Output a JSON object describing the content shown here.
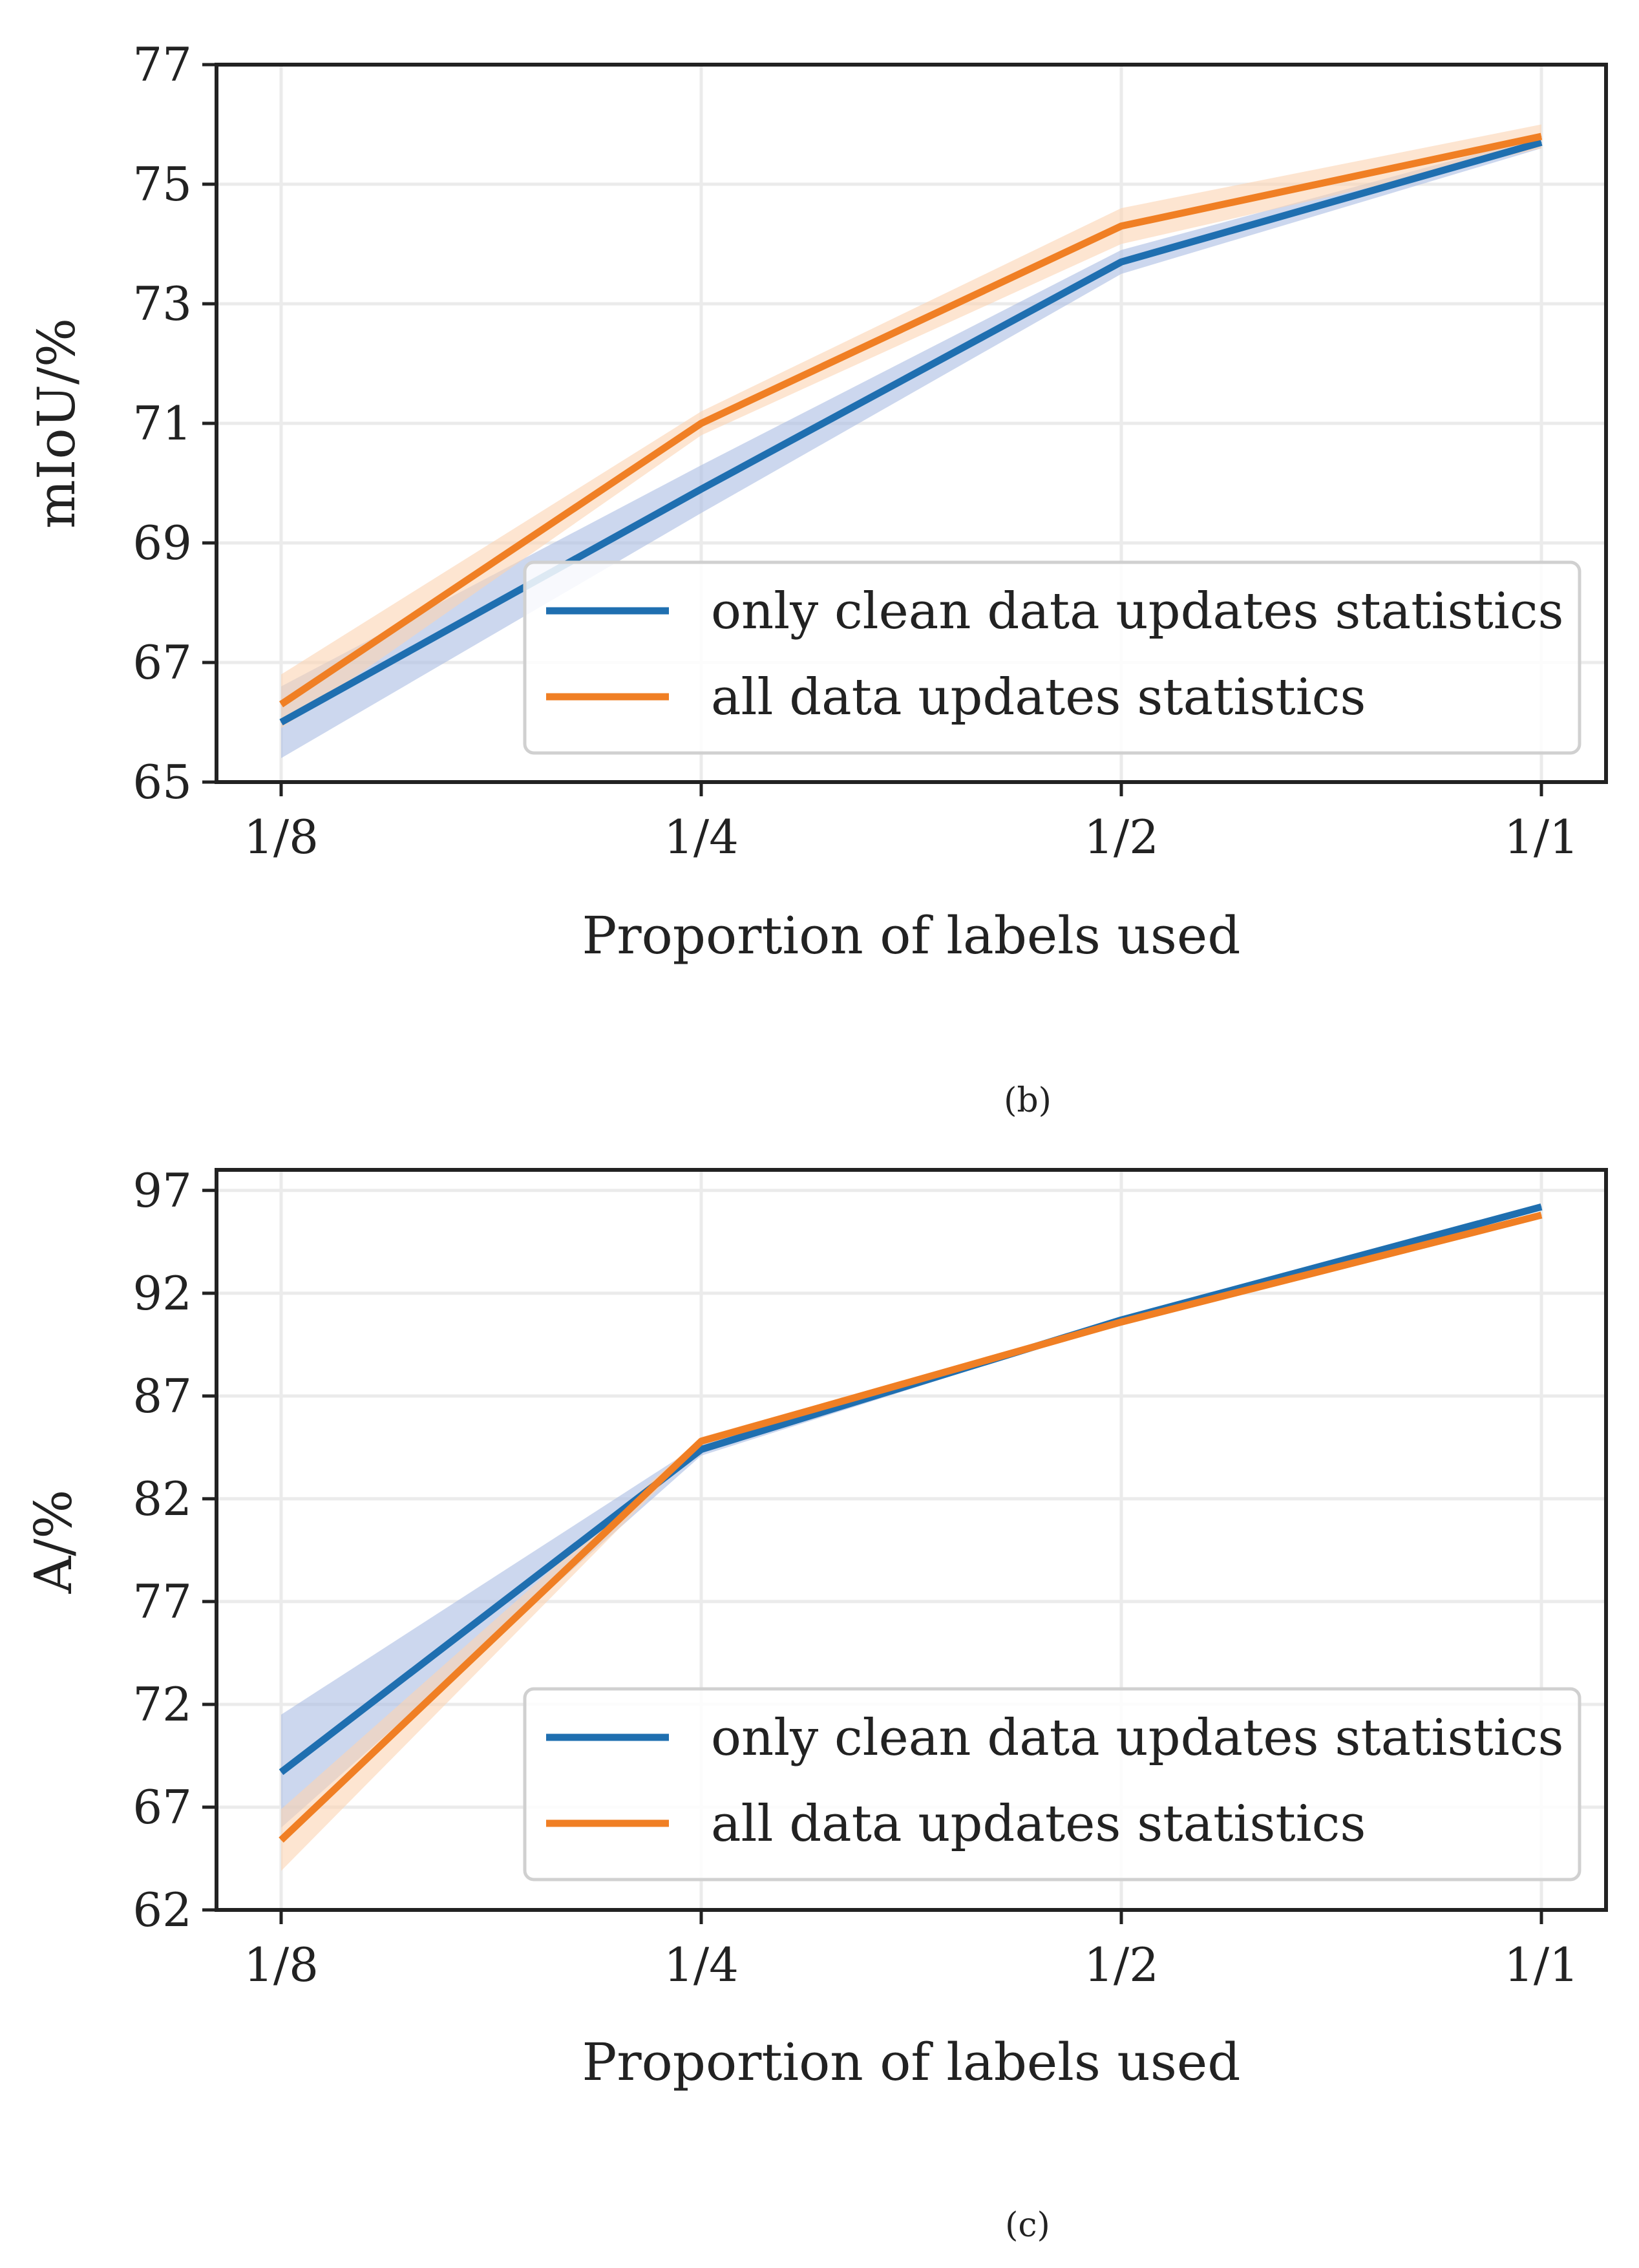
{
  "colors": {
    "blue": "#1f6fb0",
    "blue_band": "#aabde3",
    "orange": "#f07f24",
    "orange_band": "#fbd3b2",
    "axis": "#222222",
    "grid": "#ebebeb"
  },
  "chart_data": [
    {
      "type": "line",
      "caption": "(b)",
      "xlabel": "Proportion of labels used",
      "ylabel": "mIoU/%",
      "categories": [
        "1/8",
        "1/4",
        "1/2",
        "1/1"
      ],
      "ylim": [
        65,
        77
      ],
      "yticks": [
        "65",
        "67",
        "69",
        "71",
        "73",
        "75",
        "77"
      ],
      "grid": true,
      "legend_position": "lower-right",
      "series": [
        {
          "name": "only clean data updates statistics",
          "color_key": "blue",
          "values": [
            66.0,
            69.9,
            73.7,
            75.7
          ],
          "band_low": [
            65.4,
            69.5,
            73.5,
            75.6
          ],
          "band_high": [
            66.6,
            70.3,
            73.9,
            75.8
          ]
        },
        {
          "name": "all data updates statistics",
          "color_key": "orange",
          "values": [
            66.3,
            71.0,
            74.3,
            75.8
          ],
          "band_low": [
            65.9,
            70.8,
            74.0,
            75.6
          ],
          "band_high": [
            66.8,
            71.2,
            74.6,
            76.0
          ]
        }
      ]
    },
    {
      "type": "line",
      "caption": "(c)",
      "xlabel": "Proportion of labels used",
      "ylabel": "A/%",
      "categories": [
        "1/8",
        "1/4",
        "1/2",
        "1/1"
      ],
      "ylim": [
        62,
        98
      ],
      "yticks": [
        "62",
        "67",
        "72",
        "77",
        "82",
        "87",
        "92",
        "97"
      ],
      "grid": true,
      "legend_position": "lower-right",
      "series": [
        {
          "name": "only clean data updates statistics",
          "color_key": "blue",
          "values": [
            68.7,
            84.4,
            90.7,
            96.2
          ],
          "band_low": [
            66.0,
            84.1,
            90.6,
            96.1
          ],
          "band_high": [
            71.5,
            84.7,
            90.8,
            96.3
          ]
        },
        {
          "name": "all data updates statistics",
          "color_key": "orange",
          "values": [
            65.4,
            84.8,
            90.6,
            95.8
          ],
          "band_low": [
            63.9,
            84.6,
            90.5,
            95.7
          ],
          "band_high": [
            66.9,
            85.0,
            90.7,
            95.9
          ]
        }
      ]
    }
  ]
}
